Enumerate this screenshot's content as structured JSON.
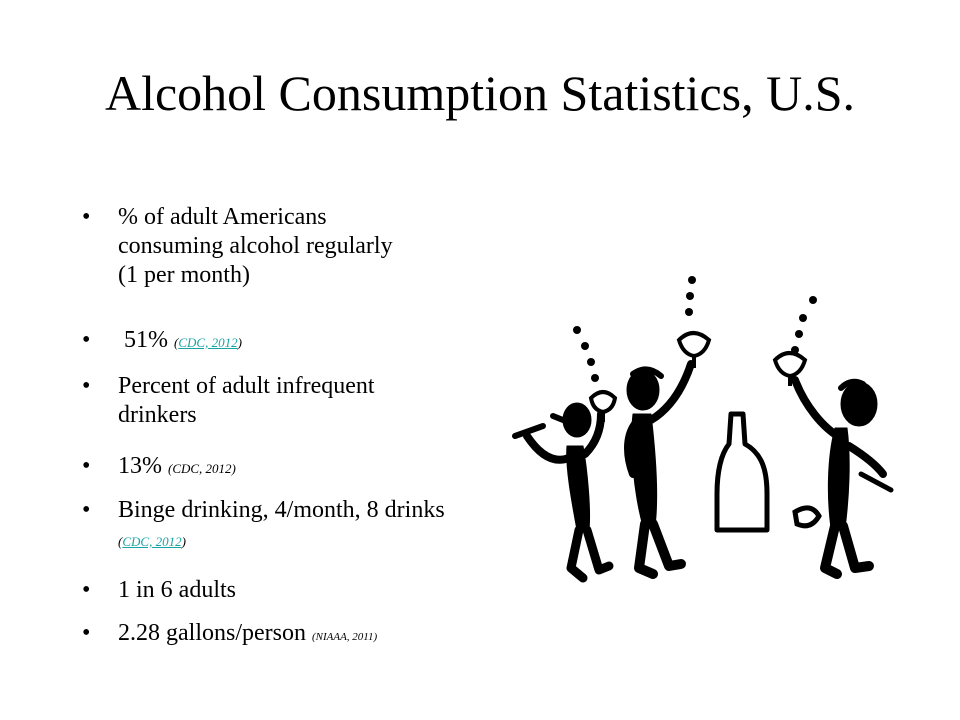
{
  "slide": {
    "title": "Alcohol Consumption Statistics, U.S."
  },
  "bullets": [
    {
      "text": "% of adult Americans consuming alcohol regularly (1 per month)"
    },
    {
      "text": " 51% ",
      "cite_open": "(",
      "cite_link": "CDC, 2012",
      "cite_close": ")"
    },
    {
      "text": "Percent of adult infrequent drinkers"
    },
    {
      "text": "13% ",
      "cite": "(CDC, 2012)"
    },
    {
      "text": "Binge drinking, 4/month, 8 drinks ",
      "cite_open": "(",
      "cite_link": "CDC, 2012",
      "cite_close": ")"
    },
    {
      "text": "1 in 6 adults"
    },
    {
      "text": "2.28 gallons/person ",
      "cite": "(NIAAA, 2011)"
    }
  ],
  "bullet_glyph": "•",
  "colors": {
    "link": "#1aa3a3",
    "text": "#000000",
    "background": "#ffffff"
  },
  "clipart": {
    "description_icon": "drinking-party-clipart"
  }
}
